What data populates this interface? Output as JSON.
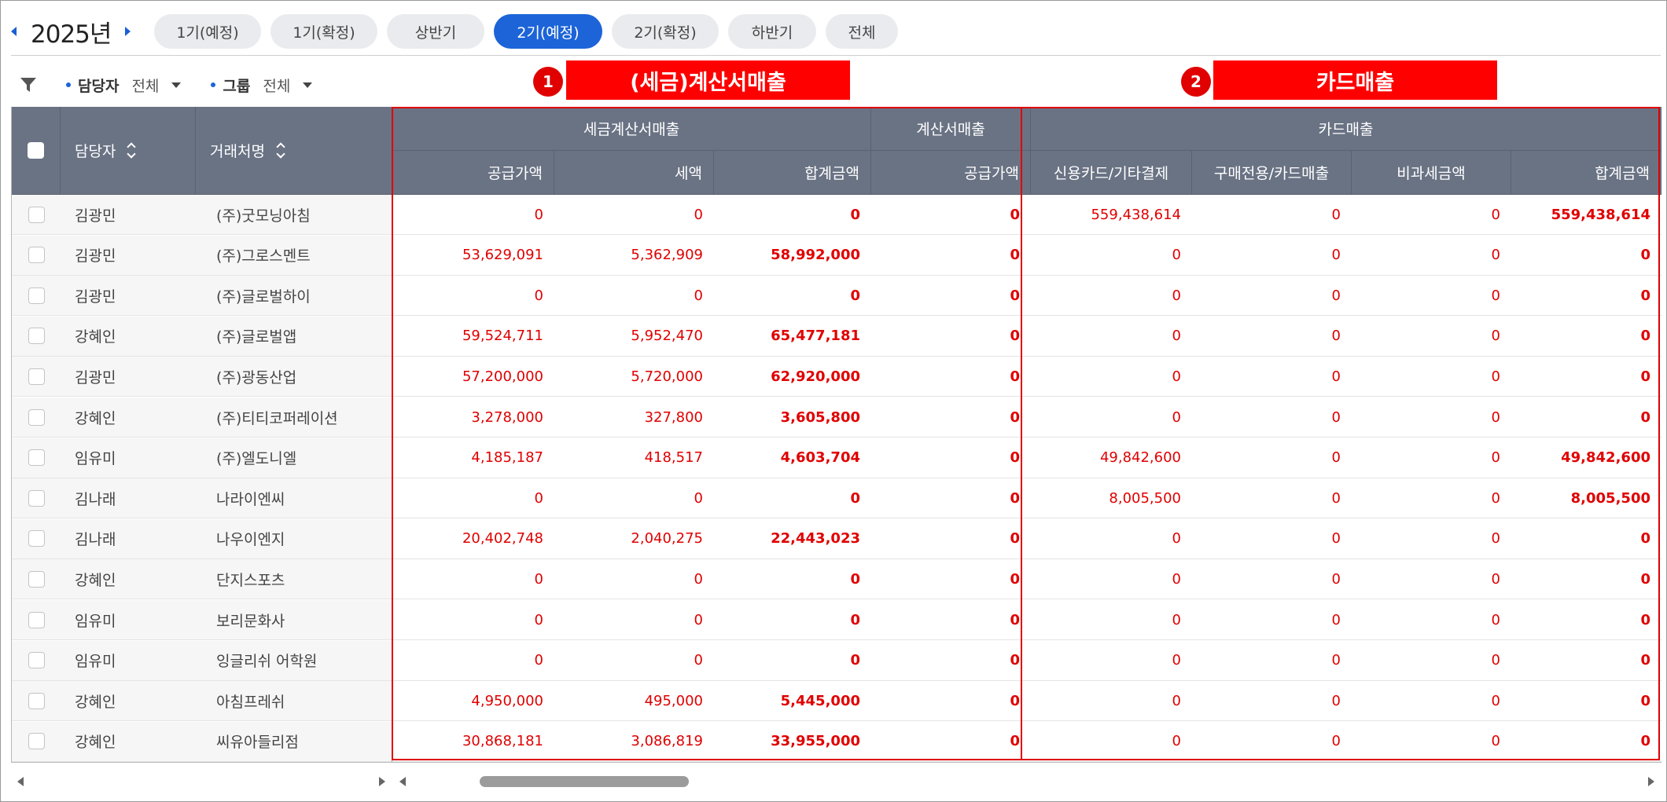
{
  "period": {
    "year": "2025년",
    "prev_icon": "caret-left-icon",
    "next_icon": "caret-right-icon",
    "tabs": [
      {
        "label": "1기(예정)",
        "active": false
      },
      {
        "label": "1기(확정)",
        "active": false
      },
      {
        "label": "상반기",
        "active": false
      },
      {
        "label": "2기(예정)",
        "active": true
      },
      {
        "label": "2기(확정)",
        "active": false
      },
      {
        "label": "하반기",
        "active": false
      },
      {
        "label": "전체",
        "active": false
      }
    ]
  },
  "filters": {
    "icon": "filter-icon",
    "manager_label": "담당자",
    "manager_value": "전체",
    "group_label": "그룹",
    "group_value": "전체"
  },
  "annotations": {
    "badge1": "1",
    "banner1": "(세금)계산서매출",
    "badge2": "2",
    "banner2": "카드매출"
  },
  "table": {
    "col_manager": "담당자",
    "col_client": "거래처명",
    "group_tax_invoice": "세금계산서매출",
    "group_invoice": "계산서매출",
    "group_card": "카드매출",
    "col_supply": "공급가액",
    "col_tax": "세액",
    "col_total": "합계금액",
    "col_invoice_supply": "공급가액",
    "col_credit": "신용카드/기타결제",
    "col_purchase_card": "구매전용/카드매출",
    "col_taxfree": "비과세금액",
    "col_card_total": "합계금액",
    "rows": [
      {
        "manager": "김광민",
        "client": "(주)굿모닝아침",
        "supply": "0",
        "tax": "0",
        "total": "0",
        "inv": "0",
        "credit": "559,438,614",
        "purchase": "0",
        "taxfree": "0",
        "card_total": "559,438,614"
      },
      {
        "manager": "김광민",
        "client": "(주)그로스멘트",
        "supply": "53,629,091",
        "tax": "5,362,909",
        "total": "58,992,000",
        "inv": "0",
        "credit": "0",
        "purchase": "0",
        "taxfree": "0",
        "card_total": "0"
      },
      {
        "manager": "김광민",
        "client": "(주)글로벌하이",
        "supply": "0",
        "tax": "0",
        "total": "0",
        "inv": "0",
        "credit": "0",
        "purchase": "0",
        "taxfree": "0",
        "card_total": "0"
      },
      {
        "manager": "강혜인",
        "client": "(주)글로벌앱",
        "supply": "59,524,711",
        "tax": "5,952,470",
        "total": "65,477,181",
        "inv": "0",
        "credit": "0",
        "purchase": "0",
        "taxfree": "0",
        "card_total": "0"
      },
      {
        "manager": "김광민",
        "client": "(주)광동산업",
        "supply": "57,200,000",
        "tax": "5,720,000",
        "total": "62,920,000",
        "inv": "0",
        "credit": "0",
        "purchase": "0",
        "taxfree": "0",
        "card_total": "0"
      },
      {
        "manager": "강혜인",
        "client": "(주)티티코퍼레이션",
        "supply": "3,278,000",
        "tax": "327,800",
        "total": "3,605,800",
        "inv": "0",
        "credit": "0",
        "purchase": "0",
        "taxfree": "0",
        "card_total": "0"
      },
      {
        "manager": "임유미",
        "client": "(주)엘도니엘",
        "supply": "4,185,187",
        "tax": "418,517",
        "total": "4,603,704",
        "inv": "0",
        "credit": "49,842,600",
        "purchase": "0",
        "taxfree": "0",
        "card_total": "49,842,600"
      },
      {
        "manager": "김나래",
        "client": "나라이엔씨",
        "supply": "0",
        "tax": "0",
        "total": "0",
        "inv": "0",
        "credit": "8,005,500",
        "purchase": "0",
        "taxfree": "0",
        "card_total": "8,005,500"
      },
      {
        "manager": "김나래",
        "client": "나우이엔지",
        "supply": "20,402,748",
        "tax": "2,040,275",
        "total": "22,443,023",
        "inv": "0",
        "credit": "0",
        "purchase": "0",
        "taxfree": "0",
        "card_total": "0"
      },
      {
        "manager": "강혜인",
        "client": "단지스포츠",
        "supply": "0",
        "tax": "0",
        "total": "0",
        "inv": "0",
        "credit": "0",
        "purchase": "0",
        "taxfree": "0",
        "card_total": "0"
      },
      {
        "manager": "임유미",
        "client": "보리문화사",
        "supply": "0",
        "tax": "0",
        "total": "0",
        "inv": "0",
        "credit": "0",
        "purchase": "0",
        "taxfree": "0",
        "card_total": "0"
      },
      {
        "manager": "임유미",
        "client": "잉글리쉬 어학원",
        "supply": "0",
        "tax": "0",
        "total": "0",
        "inv": "0",
        "credit": "0",
        "purchase": "0",
        "taxfree": "0",
        "card_total": "0"
      },
      {
        "manager": "강혜인",
        "client": "아침프레쉬",
        "supply": "4,950,000",
        "tax": "495,000",
        "total": "5,445,000",
        "inv": "0",
        "credit": "0",
        "purchase": "0",
        "taxfree": "0",
        "card_total": "0"
      },
      {
        "manager": "강혜인",
        "client": "씨유아들리점",
        "supply": "30,868,181",
        "tax": "3,086,819",
        "total": "33,955,000",
        "inv": "0",
        "credit": "0",
        "purchase": "0",
        "taxfree": "0",
        "card_total": "0"
      }
    ]
  },
  "colors": {
    "accent": "#1c64d8",
    "header_bg": "#6a7384",
    "value_red": "#e00000",
    "annotation_red": "#ff0000"
  }
}
